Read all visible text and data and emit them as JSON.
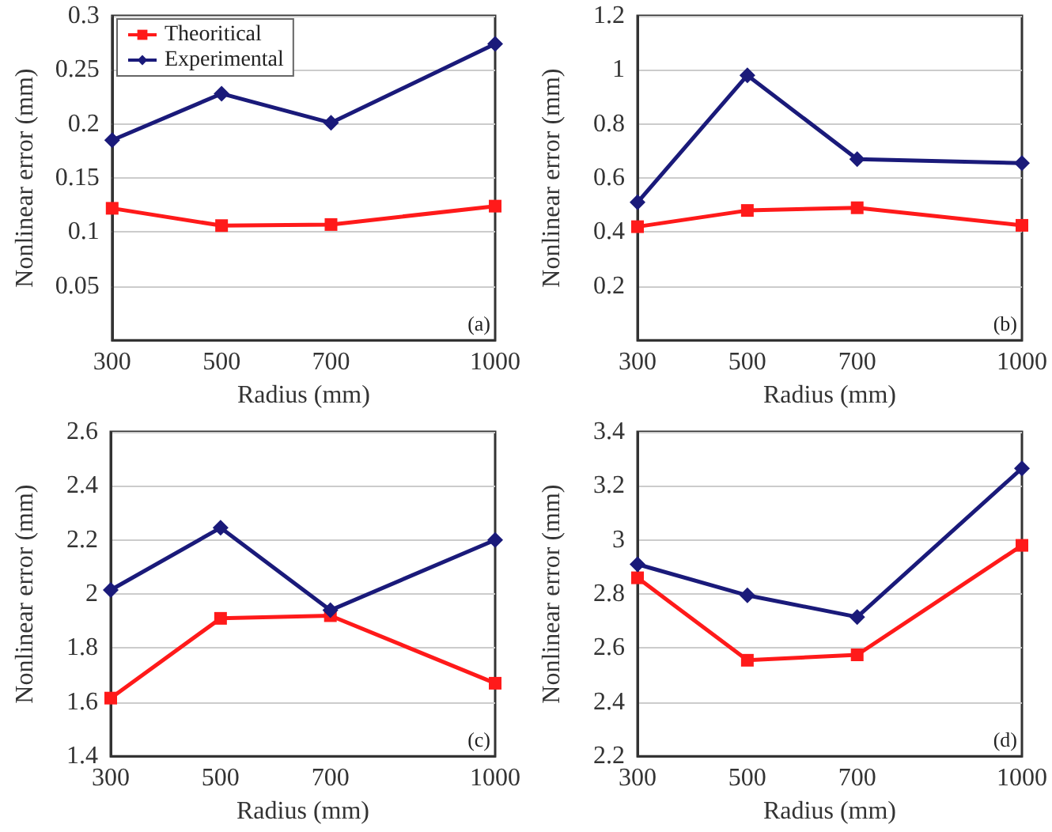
{
  "chart_data": [
    {
      "type": "line",
      "xlabel": "Radius (mm)",
      "ylabel": "Nonlinear error (mm)",
      "x": [
        300,
        500,
        700,
        1000
      ],
      "xlim": [
        300,
        1000
      ],
      "xticks": [
        300,
        500,
        700,
        1000
      ],
      "ylim": [
        0,
        0.3
      ],
      "yticks": [
        0.05,
        0.1,
        0.15,
        0.2,
        0.25,
        0.3
      ],
      "grid": "y",
      "legend": "top left",
      "annotations": [
        "(a)"
      ],
      "series": [
        {
          "name": "Theoritical",
          "color": "#ff1a1a",
          "marker": "square",
          "values": [
            0.122,
            0.106,
            0.107,
            0.124
          ]
        },
        {
          "name": "Experimental",
          "color": "#1a1a7a",
          "marker": "diamond",
          "values": [
            0.185,
            0.228,
            0.201,
            0.274
          ]
        }
      ]
    },
    {
      "type": "line",
      "xlabel": "Radius (mm)",
      "ylabel": "Nonlinear error (mm)",
      "x": [
        300,
        500,
        700,
        1000
      ],
      "xlim": [
        300,
        1000
      ],
      "xticks": [
        300,
        500,
        700,
        1000
      ],
      "ylim": [
        0,
        1.2
      ],
      "yticks": [
        0.2,
        0.4,
        0.6,
        0.8,
        1,
        1.2
      ],
      "grid": "y",
      "annotations": [
        "(b)"
      ],
      "series": [
        {
          "color": "#ff1a1a",
          "marker": "square",
          "values": [
            0.42,
            0.48,
            0.49,
            0.425
          ]
        },
        {
          "color": "#1a1a7a",
          "marker": "diamond",
          "values": [
            0.51,
            0.98,
            0.67,
            0.655
          ]
        }
      ]
    },
    {
      "type": "line",
      "xlabel": "Radius (mm)",
      "ylabel": "Nonlinear error (mm)",
      "x": [
        300,
        500,
        700,
        1000
      ],
      "xlim": [
        300,
        1000
      ],
      "xticks": [
        300,
        500,
        700,
        1000
      ],
      "ylim": [
        1.4,
        2.6
      ],
      "yticks": [
        1.4,
        1.6,
        1.8,
        2,
        2.2,
        2.4,
        2.6
      ],
      "grid": "y",
      "annotations": [
        "(c)"
      ],
      "series": [
        {
          "color": "#ff1a1a",
          "marker": "square",
          "values": [
            1.615,
            1.91,
            1.92,
            1.67
          ]
        },
        {
          "color": "#1a1a7a",
          "marker": "diamond",
          "values": [
            2.015,
            2.245,
            1.94,
            2.2
          ]
        }
      ]
    },
    {
      "type": "line",
      "xlabel": "Radius (mm)",
      "ylabel": "Nonlinear error (mm)",
      "x": [
        300,
        500,
        700,
        1000
      ],
      "xlim": [
        300,
        1000
      ],
      "xticks": [
        300,
        500,
        700,
        1000
      ],
      "ylim": [
        2.2,
        3.4
      ],
      "yticks": [
        2.2,
        2.4,
        2.6,
        2.8,
        3,
        3.2,
        3.4
      ],
      "grid": "y",
      "annotations": [
        "(d)"
      ],
      "series": [
        {
          "color": "#ff1a1a",
          "marker": "square",
          "values": [
            2.86,
            2.555,
            2.575,
            2.98
          ]
        },
        {
          "color": "#1a1a7a",
          "marker": "diamond",
          "values": [
            2.91,
            2.795,
            2.715,
            3.265
          ]
        }
      ]
    }
  ]
}
